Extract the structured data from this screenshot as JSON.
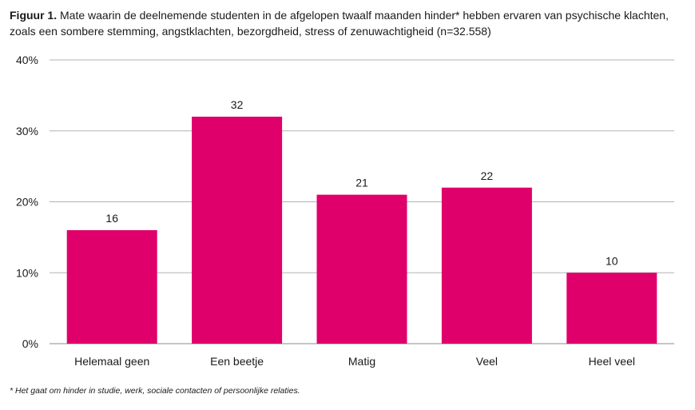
{
  "figure": {
    "prefix": "Figuur 1.",
    "title": "Mate waarin de deelnemende studenten in de afgelopen twaalf maanden hinder* hebben ervaren van psychische klachten, zoals een sombere stemming, angstklachten, bezorgdheid, stress of zenuwachtigheid (n=32.558)",
    "footnote": "* Het gaat om hinder in studie, werk, sociale contacten of persoonlijke relaties."
  },
  "chart_data": {
    "type": "bar",
    "title": "Mate waarin de deelnemende studenten in de afgelopen twaalf maanden hinder* hebben ervaren van psychische klachten, zoals een sombere stemming, angstklachten, bezorgdheid, stress of zenuwachtigheid (n=32.558)",
    "categories": [
      "Helemaal geen",
      "Een beetje",
      "Matig",
      "Veel",
      "Heel veel"
    ],
    "values": [
      16,
      32,
      21,
      22,
      10
    ],
    "xlabel": "",
    "ylabel": "",
    "ylim": [
      0,
      40
    ],
    "yticks": [
      0,
      10,
      20,
      30,
      40
    ],
    "ytick_labels": [
      "0%",
      "10%",
      "20%",
      "30%",
      "40%"
    ],
    "grid": true,
    "data_labels": true,
    "colors": {
      "bar": "#E0006B",
      "grid": "#b3b3b3",
      "text": "#1a1a1a"
    }
  }
}
